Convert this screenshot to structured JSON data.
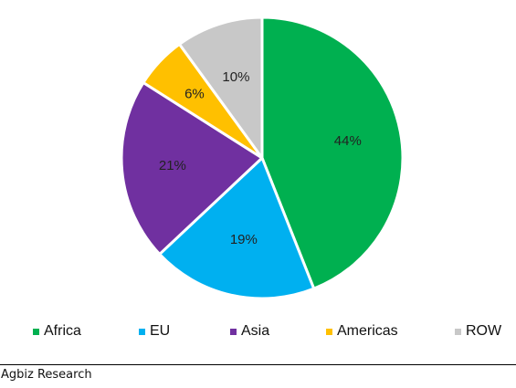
{
  "chart_data": {
    "type": "pie",
    "title": "",
    "categories": [
      "Africa",
      "EU",
      "Asia",
      "Americas",
      "ROW"
    ],
    "values": [
      44,
      19,
      21,
      6,
      10
    ],
    "value_labels": [
      "44%",
      "19%",
      "21%",
      "6%",
      "10%"
    ],
    "colors": [
      "#00b050",
      "#00b0f0",
      "#7030a0",
      "#ffc000",
      "#c8c8c8"
    ],
    "start_angle": "12 o'clock",
    "direction": "clockwise",
    "legend_position": "bottom"
  },
  "source": "Agbiz Research"
}
